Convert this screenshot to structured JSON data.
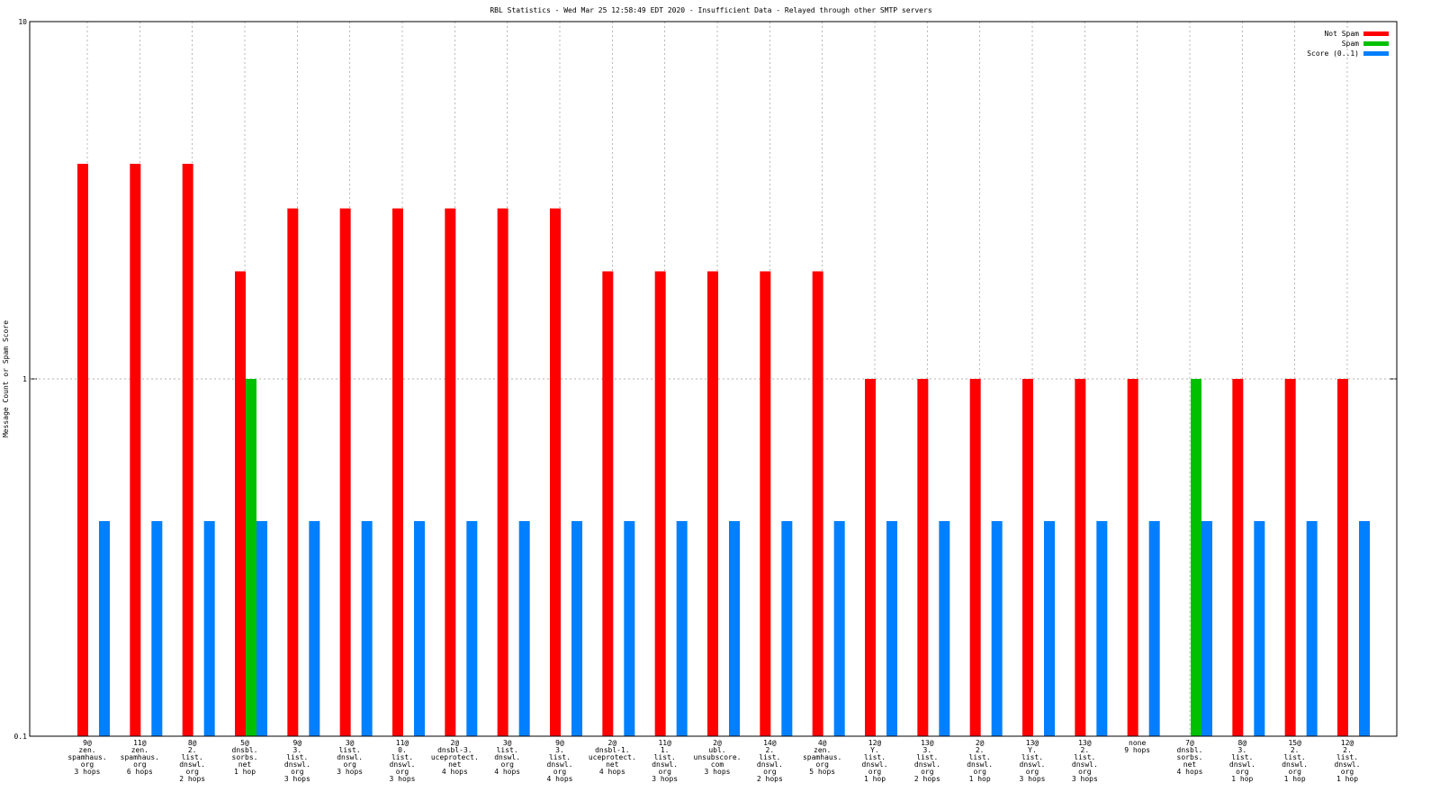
{
  "chart_data": {
    "type": "bar",
    "title": "RBL Statistics - Wed Mar 25 12:58:49 EDT 2020 - Insufficient Data - Relayed through other SMTP servers",
    "y_label": "Message Count or Spam Score",
    "categories": [
      [
        "9@",
        "zen.",
        "spamhaus.",
        "org",
        "3 hops"
      ],
      [
        "11@",
        "zen.",
        "spamhaus.",
        "org",
        "6 hops"
      ],
      [
        "8@",
        "2.",
        "list.",
        "dnswl.",
        "org",
        "2 hops"
      ],
      [
        "5@",
        "dnsbl.",
        "sorbs.",
        "net",
        "1 hop"
      ],
      [
        "9@",
        "3.",
        "list.",
        "dnswl.",
        "org",
        "3 hops"
      ],
      [
        "3@",
        "list.",
        "dnswl.",
        "org",
        "3 hops"
      ],
      [
        "11@",
        "0.",
        "list.",
        "dnswl.",
        "org",
        "3 hops"
      ],
      [
        "2@",
        "dnsbl-3.",
        "uceprotect.",
        "net",
        "4 hops"
      ],
      [
        "3@",
        "list.",
        "dnswl.",
        "org",
        "4 hops"
      ],
      [
        "9@",
        "3.",
        "list.",
        "dnswl.",
        "org",
        "4 hops"
      ],
      [
        "2@",
        "dnsbl-1.",
        "uceprotect.",
        "net",
        "4 hops"
      ],
      [
        "11@",
        "1.",
        "list.",
        "dnswl.",
        "org",
        "3 hops"
      ],
      [
        "2@",
        "ubl.",
        "unsubscore.",
        "com",
        "3 hops"
      ],
      [
        "14@",
        "2.",
        "list.",
        "dnswl.",
        "org",
        "2 hops"
      ],
      [
        "4@",
        "zen.",
        "spamhaus.",
        "org",
        "5 hops"
      ],
      [
        "12@",
        "Y.",
        "list.",
        "dnswl.",
        "org",
        "1 hop"
      ],
      [
        "13@",
        "3.",
        "list.",
        "dnswl.",
        "org",
        "2 hops"
      ],
      [
        "2@",
        "2.",
        "list.",
        "dnswl.",
        "org",
        "1 hop"
      ],
      [
        "13@",
        "Y.",
        "list.",
        "dnswl.",
        "org",
        "3 hops"
      ],
      [
        "13@",
        "2.",
        "list.",
        "dnswl.",
        "org",
        "3 hops"
      ],
      [
        "none",
        "9 hops"
      ],
      [
        "7@",
        "dnsbl.",
        "sorbs.",
        "net",
        "4 hops"
      ],
      [
        "8@",
        "3.",
        "list.",
        "dnswl.",
        "org",
        "1 hop"
      ],
      [
        "15@",
        "2.",
        "list.",
        "dnswl.",
        "org",
        "1 hop"
      ],
      [
        "12@",
        "2.",
        "list.",
        "dnswl.",
        "org",
        "1 hop"
      ]
    ],
    "series": [
      {
        "name": "Not Spam",
        "color": "#ff0000",
        "values": [
          4,
          4,
          4,
          2,
          3,
          3,
          3,
          3,
          3,
          3,
          2,
          2,
          2,
          2,
          2,
          1,
          1,
          1,
          1,
          1,
          1,
          null,
          1,
          1,
          1
        ]
      },
      {
        "name": "Spam",
        "color": "#00c000",
        "values": [
          null,
          null,
          null,
          1,
          null,
          null,
          null,
          null,
          null,
          null,
          null,
          null,
          null,
          null,
          null,
          null,
          null,
          null,
          null,
          null,
          null,
          1,
          null,
          null,
          null
        ]
      },
      {
        "name": "Score (0..1)",
        "color": "#0080ff",
        "values": [
          0.4,
          0.4,
          0.4,
          0.4,
          0.4,
          0.4,
          0.4,
          0.4,
          0.4,
          0.4,
          0.4,
          0.4,
          0.4,
          0.4,
          0.4,
          0.4,
          0.4,
          0.4,
          0.4,
          0.4,
          0.4,
          0.4,
          0.4,
          0.4,
          0.4
        ]
      }
    ],
    "log_y": true,
    "ylim": [
      0.1,
      10
    ],
    "yticks": [
      0.1,
      1,
      10
    ],
    "grid": true,
    "legend": "top-right"
  }
}
